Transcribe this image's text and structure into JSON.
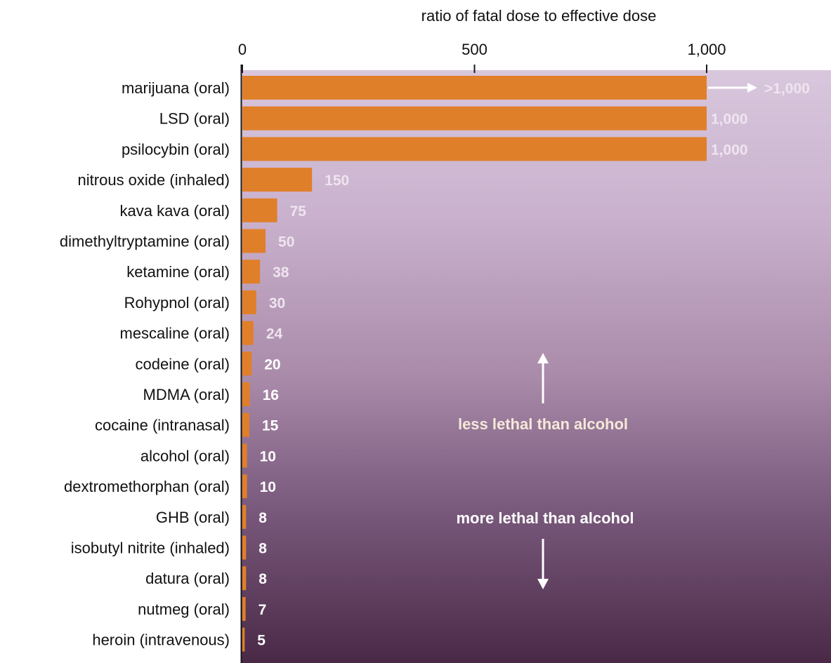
{
  "chart_data": {
    "type": "bar",
    "orientation": "horizontal",
    "title": "",
    "xlabel": "ratio of fatal dose to effective dose",
    "ylabel": "",
    "xlim": [
      0,
      1000
    ],
    "x_ticks": [
      "0",
      "500",
      "1,000"
    ],
    "x_tick_values": [
      0,
      500,
      1000
    ],
    "grid": false,
    "categories": [
      "marijuana (oral)",
      "LSD (oral)",
      "psilocybin (oral)",
      "nitrous oxide (inhaled)",
      "kava kava (oral)",
      "dimethyltryptamine (oral)",
      "ketamine (oral)",
      "Rohypnol (oral)",
      "mescaline (oral)",
      "codeine (oral)",
      "MDMA (oral)",
      "cocaine (intranasal)",
      "alcohol (oral)",
      "dextromethorphan (oral)",
      "GHB (oral)",
      "isobutyl nitrite (inhaled)",
      "datura (oral)",
      "nutmeg (oral)",
      "heroin (intravenous)"
    ],
    "values": [
      1000,
      1000,
      1000,
      150,
      75,
      50,
      38,
      30,
      24,
      20,
      16,
      15,
      10,
      10,
      8,
      8,
      8,
      7,
      5
    ],
    "value_labels": [
      ">1,000",
      "1,000",
      "1,000",
      "150",
      "75",
      "50",
      "38",
      "30",
      "24",
      "20",
      "16",
      "15",
      "10",
      "10",
      "8",
      "8",
      "8",
      "7",
      "5"
    ],
    "annotations": {
      "above": "less lethal than alcohol",
      "below": "more lethal than alcohol"
    }
  },
  "colors": {
    "bar": "#e07f2a",
    "value_label_light": "#efe4ef",
    "value_label_white": "#ffffff",
    "arrow": "#ffffff",
    "annotation_above": "#f4e9d8",
    "annotation_below": "#ffffff"
  }
}
